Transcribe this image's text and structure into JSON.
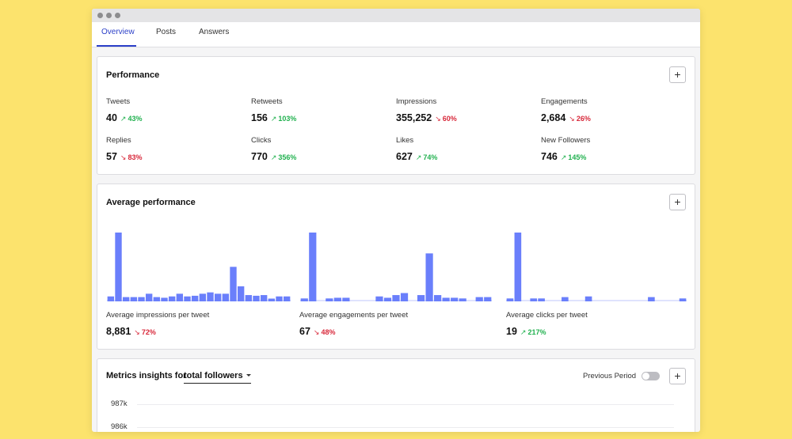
{
  "tabs": [
    {
      "label": "Overview",
      "active": true
    },
    {
      "label": "Posts",
      "active": false
    },
    {
      "label": "Answers",
      "active": false
    }
  ],
  "performance": {
    "title": "Performance",
    "add_icon": "plus-icon",
    "metrics": [
      {
        "label": "Tweets",
        "value": "40",
        "change": "43%",
        "trend": "up"
      },
      {
        "label": "Retweets",
        "value": "156",
        "change": "103%",
        "trend": "up"
      },
      {
        "label": "Impressions",
        "value": "355,252",
        "change": "60%",
        "trend": "down"
      },
      {
        "label": "Engagements",
        "value": "2,684",
        "change": "26%",
        "trend": "down"
      },
      {
        "label": "Replies",
        "value": "57",
        "change": "83%",
        "trend": "down"
      },
      {
        "label": "Clicks",
        "value": "770",
        "change": "356%",
        "trend": "up"
      },
      {
        "label": "Likes",
        "value": "627",
        "change": "74%",
        "trend": "up"
      },
      {
        "label": "New Followers",
        "value": "746",
        "change": "145%",
        "trend": "up"
      }
    ]
  },
  "average_performance": {
    "title": "Average performance",
    "add_icon": "plus-icon",
    "charts": [
      {
        "label": "Average impressions per tweet",
        "value": "8,881",
        "change": "72%",
        "trend": "down"
      },
      {
        "label": "Average engagements per tweet",
        "value": "67",
        "change": "48%",
        "trend": "down"
      },
      {
        "label": "Average clicks per tweet",
        "value": "19",
        "change": "217%",
        "trend": "up"
      }
    ]
  },
  "chart_data": [
    {
      "type": "bar",
      "title": "Average impressions per tweet",
      "values": [
        0.05,
        1.0,
        0.04,
        0.04,
        0.04,
        0.09,
        0.04,
        0.03,
        0.05,
        0.09,
        0.05,
        0.06,
        0.09,
        0.11,
        0.09,
        0.09,
        0.49,
        0.2,
        0.07,
        0.06,
        0.07,
        0.01,
        0.05,
        0.05
      ],
      "ylim": [
        0,
        1
      ]
    },
    {
      "type": "bar",
      "title": "Average engagements per tweet",
      "values": [
        0.02,
        1.0,
        0.0,
        0.02,
        0.03,
        0.03,
        0.0,
        0.0,
        0.0,
        0.05,
        0.03,
        0.07,
        0.1,
        0.0,
        0.07,
        0.69,
        0.07,
        0.03,
        0.03,
        0.02,
        0.0,
        0.04,
        0.04
      ],
      "ylim": [
        0,
        1
      ]
    },
    {
      "type": "bar",
      "title": "Average clicks per tweet",
      "values": [
        0.02,
        1.0,
        0.0,
        0.02,
        0.02,
        0.0,
        0.0,
        0.04,
        0.0,
        0.0,
        0.05,
        0.0,
        0.0,
        0.0,
        0.0,
        0.0,
        0.0,
        0.0,
        0.04,
        0.0,
        0.0,
        0.0,
        0.02
      ],
      "ylim": [
        0,
        1
      ]
    }
  ],
  "metrics_insights": {
    "title_prefix": "Metrics insights for",
    "selected_metric": "total followers",
    "previous_period_label": "Previous Period",
    "previous_period_enabled": false,
    "add_icon": "plus-icon",
    "y_ticks": [
      "987k",
      "986k"
    ]
  },
  "colors": {
    "background": "#fce36d",
    "accent": "#2b3fc8",
    "bar": "#6a7ffb",
    "up": "#21b14f",
    "down": "#d8283a"
  }
}
